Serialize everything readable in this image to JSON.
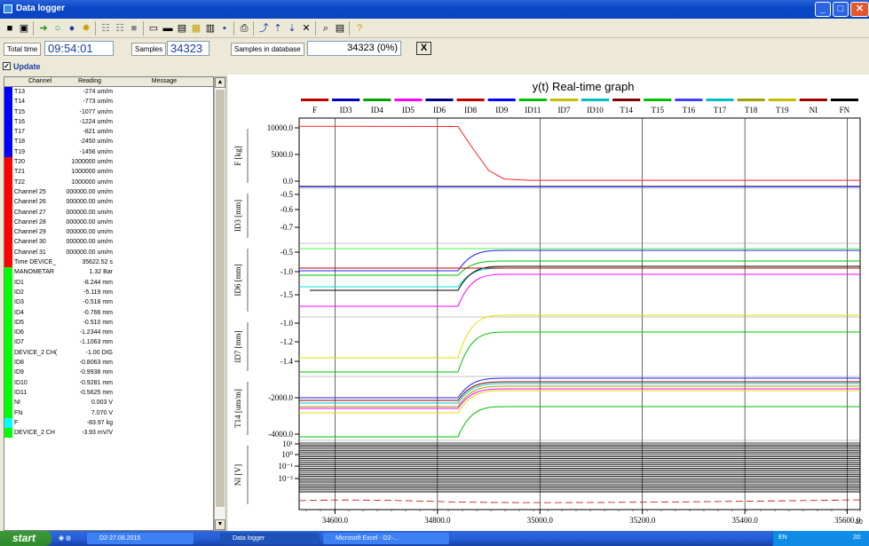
{
  "window": {
    "title": "Data logger",
    "minimize": "_",
    "maximize": "□",
    "close": "✕"
  },
  "toolbar": {
    "icons": [
      "stop-square-icon",
      "window-icon",
      "arrow-right-icon",
      "circle-icon",
      "record-dot-icon",
      "settings-sun-icon",
      "channels-icon",
      "channels2-icon",
      "stop-icon",
      "monitor-icon",
      "graph-icon",
      "list-icon",
      "data-icon",
      "chart-icon",
      "save-icon",
      "print-icon",
      "trend-icon",
      "up-arrow-icon",
      "down-arrow-icon",
      "delete-icon",
      "zoom-icon",
      "text-icon",
      "help-icon"
    ]
  },
  "info": {
    "total_time_label": "Total time",
    "total_time_value": "09:54:01",
    "samples_label": "Samples",
    "samples_value": "34323",
    "db_label": "Samples in database",
    "db_value": "34323 (0%)",
    "x_button": "X"
  },
  "update": {
    "label": "Update",
    "checked": true
  },
  "table": {
    "headers": {
      "channel": "Channel",
      "reading": "Reading",
      "message": "Message"
    },
    "rows": [
      {
        "channel": "T13",
        "reading": "-274 um/m",
        "color": "#0000ff"
      },
      {
        "channel": "T14",
        "reading": "-773 um/m",
        "color": "#0000ff"
      },
      {
        "channel": "T15",
        "reading": "-1077 um/m",
        "color": "#0000ff"
      },
      {
        "channel": "T16",
        "reading": "-1224 um/m",
        "color": "#0000ff"
      },
      {
        "channel": "T17",
        "reading": "-821 um/m",
        "color": "#0000ff"
      },
      {
        "channel": "T18",
        "reading": "-2450 um/m",
        "color": "#0000ff"
      },
      {
        "channel": "T19",
        "reading": "-1456 um/m",
        "color": "#0000ff"
      },
      {
        "channel": "T20",
        "reading": "1000000 um/m",
        "color": "#ff0000"
      },
      {
        "channel": "T21",
        "reading": "1000000 um/m",
        "color": "#ff0000"
      },
      {
        "channel": "T22",
        "reading": "1000000 um/m",
        "color": "#ff0000"
      },
      {
        "channel": "Channel 25",
        "reading": "000000.00 um/m",
        "color": "#ff0000"
      },
      {
        "channel": "Channel 26",
        "reading": "000000.00 um/m",
        "color": "#ff0000"
      },
      {
        "channel": "Channel 27",
        "reading": "000000.00 um/m",
        "color": "#ff0000"
      },
      {
        "channel": "Channel 28",
        "reading": "000000.00 um/m",
        "color": "#ff0000"
      },
      {
        "channel": "Channel 29",
        "reading": "000000.00 um/m",
        "color": "#ff0000"
      },
      {
        "channel": "Channel 30",
        "reading": "000000.00 um/m",
        "color": "#ff0000"
      },
      {
        "channel": "Channel 31",
        "reading": "000000.00 um/m",
        "color": "#ff0000"
      },
      {
        "channel": "Time DEVICE_",
        "reading": "35622.52 s",
        "color": "#ff0000"
      },
      {
        "channel": "MANOMETAR",
        "reading": "1.32 Bar",
        "color": "#00ff00"
      },
      {
        "channel": "ID1",
        "reading": "-8.244 mm",
        "color": "#00ff00"
      },
      {
        "channel": "ID2",
        "reading": "-5.119 mm",
        "color": "#00ff00"
      },
      {
        "channel": "ID3",
        "reading": "-0.518 mm",
        "color": "#00ff00"
      },
      {
        "channel": "ID4",
        "reading": "-0.766 mm",
        "color": "#00ff00"
      },
      {
        "channel": "ID5",
        "reading": "-0.510 mm",
        "color": "#00ff00"
      },
      {
        "channel": "ID6",
        "reading": "-1.2344 mm",
        "color": "#00ff00"
      },
      {
        "channel": "ID7",
        "reading": "-1.1063 mm",
        "color": "#00ff00"
      },
      {
        "channel": "DEVICE_2 CH(",
        "reading": "-1.00 DIG",
        "color": "#00ff00"
      },
      {
        "channel": "ID8",
        "reading": "-0.8063 mm",
        "color": "#00ff00"
      },
      {
        "channel": "ID9",
        "reading": "-0.9938 mm",
        "color": "#00ff00"
      },
      {
        "channel": "ID10",
        "reading": "-0.9281 mm",
        "color": "#00ff00"
      },
      {
        "channel": "ID11",
        "reading": "-0.5625 mm",
        "color": "#00ff00"
      },
      {
        "channel": "NI",
        "reading": "0.003 V",
        "color": "#00ff00"
      },
      {
        "channel": "FN",
        "reading": "7.070 V",
        "color": "#00ff00"
      },
      {
        "channel": "F",
        "reading": "-83.97 kg",
        "color": "#00ffff"
      },
      {
        "channel": "DEVICE_2 CH",
        "reading": "-3.93 mV/V",
        "color": "#00ff00"
      }
    ]
  },
  "graph": {
    "title": "y(t) Real-time graph",
    "legend": [
      {
        "name": "F",
        "color": "#c00000"
      },
      {
        "name": "ID3",
        "color": "#0000c0"
      },
      {
        "name": "ID4",
        "color": "#00a000"
      },
      {
        "name": "ID5",
        "color": "#ff00ff"
      },
      {
        "name": "ID6",
        "color": "#000080"
      },
      {
        "name": "ID8",
        "color": "#c00000"
      },
      {
        "name": "ID9",
        "color": "#0000ff"
      },
      {
        "name": "ID11",
        "color": "#00c000"
      },
      {
        "name": "ID7",
        "color": "#c0c000"
      },
      {
        "name": "ID10",
        "color": "#00c0c0"
      },
      {
        "name": "T14",
        "color": "#800000"
      },
      {
        "name": "T15",
        "color": "#00c000"
      },
      {
        "name": "T16",
        "color": "#4040ff"
      },
      {
        "name": "T17",
        "color": "#00c0c0"
      },
      {
        "name": "T18",
        "color": "#a0a000"
      },
      {
        "name": "T19",
        "color": "#c0c000"
      },
      {
        "name": "NI",
        "color": "#a00000"
      },
      {
        "name": "FN",
        "color": "#000000"
      }
    ],
    "panels": [
      {
        "label": "F [kg]",
        "ticks": [
          "10000.0",
          "5000.0",
          "0.0"
        ]
      },
      {
        "label": "ID3 [mm]",
        "ticks": [
          "-0.5",
          "-0.6",
          "-0.7"
        ]
      },
      {
        "label": "ID6 [mm]",
        "ticks": [
          "-0.5",
          "-1.0",
          "-1.5"
        ]
      },
      {
        "label": "ID7 [mm]",
        "ticks": [
          "-1.0",
          "-1.2",
          "-1.4"
        ]
      },
      {
        "label": "T14 [um/m]",
        "ticks": [
          "-2000.0",
          "-4000.0"
        ]
      },
      {
        "label": "NI [V]",
        "ticks": [
          "10¹",
          "10⁰",
          "10⁻¹",
          "10⁻²"
        ]
      }
    ],
    "x_ticks": [
      "34600.0",
      "34800.0",
      "35000.0",
      "35200.0",
      "35400.0",
      "35600.0"
    ],
    "partial_label": "20"
  },
  "chart_data": {
    "type": "line",
    "title": "y(t) Real-time graph",
    "xlabel": "",
    "x_ticks": [
      34600,
      34800,
      35000,
      35200,
      35400,
      35600
    ],
    "xlim": [
      34530,
      35625
    ],
    "series": [
      {
        "name": "F",
        "panel": "F [kg]",
        "points": [
          [
            34530,
            10300
          ],
          [
            34840,
            10250
          ],
          [
            34870,
            6000
          ],
          [
            34900,
            2000
          ],
          [
            34930,
            400
          ],
          [
            34980,
            150
          ],
          [
            35625,
            150
          ]
        ]
      }
    ],
    "grid": true,
    "legend_position": "top"
  },
  "taskbar": {
    "start_label": "start",
    "tasks": [
      {
        "label": "D2-27.08.2015",
        "active": false
      },
      {
        "label": "Data logger",
        "active": true
      },
      {
        "label": "Microsoft Excel - D2-...",
        "active": false
      }
    ],
    "tray_lang": "EN",
    "clock": "20:"
  }
}
